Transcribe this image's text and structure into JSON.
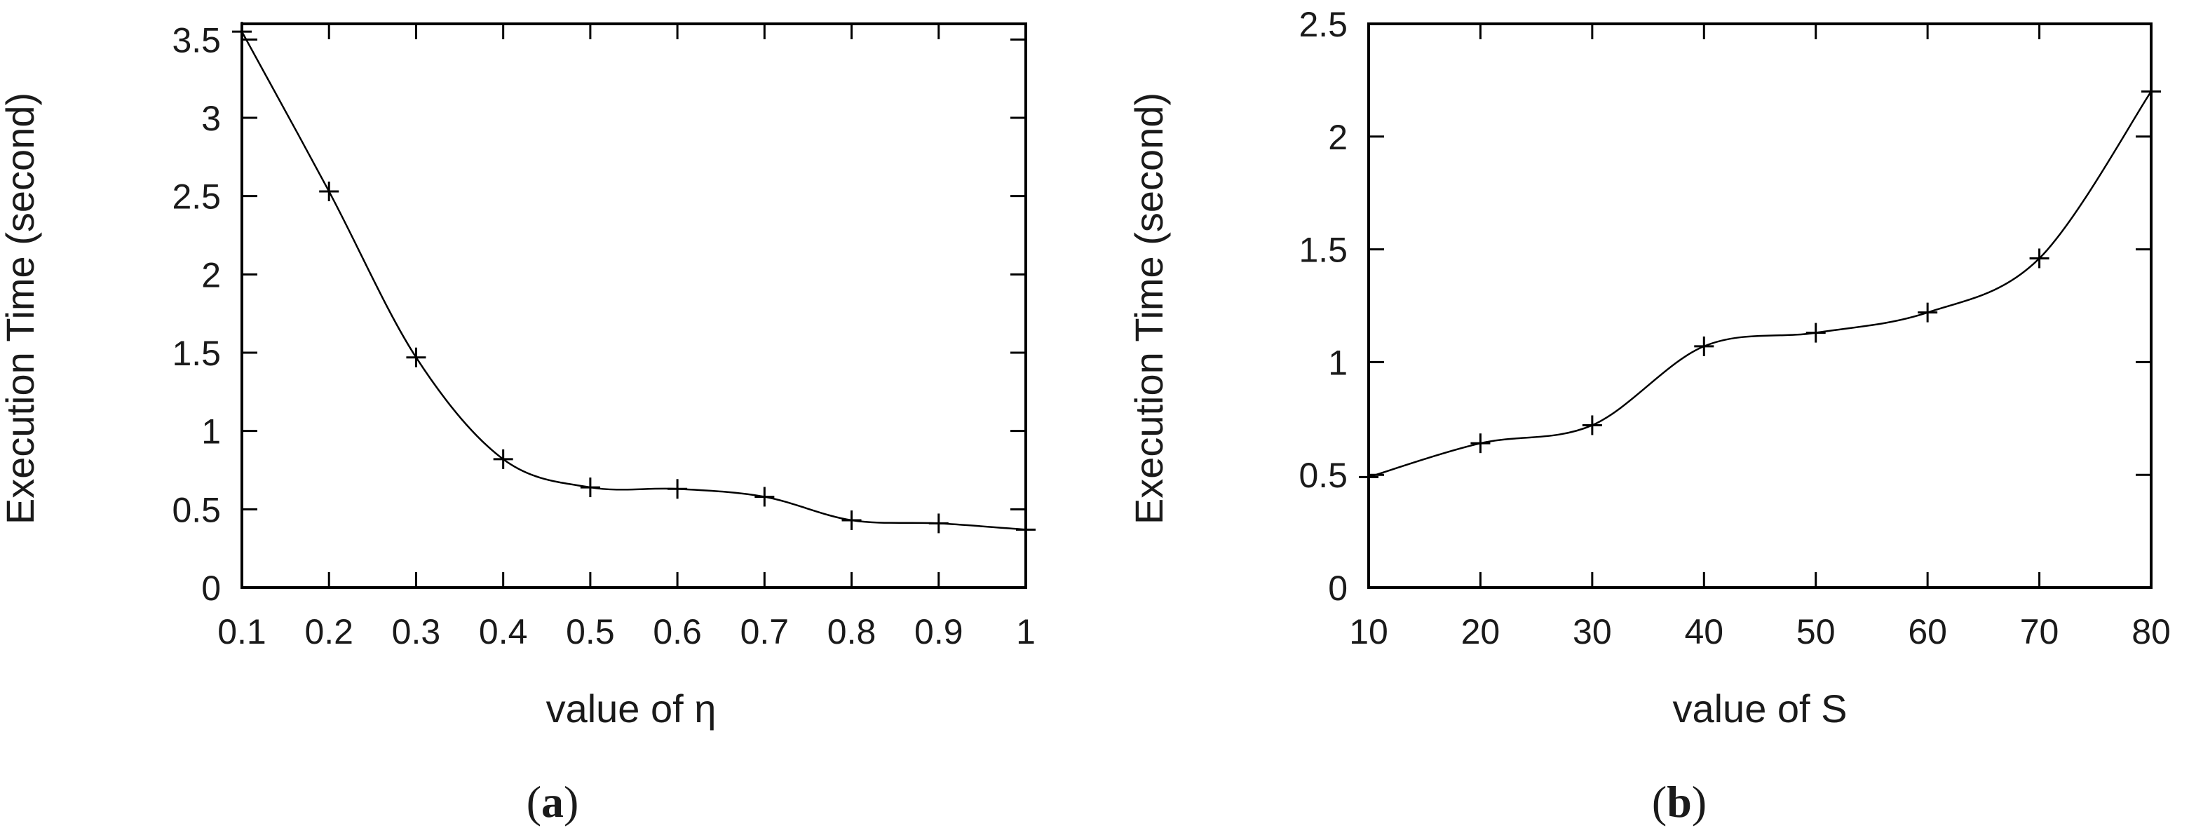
{
  "chart_data": [
    {
      "type": "line",
      "panel_label": "a",
      "xlabel": "value of η",
      "ylabel": "Execution Time (second)",
      "xlim": [
        0.1,
        1
      ],
      "ylim": [
        0,
        3.6
      ],
      "xticks": [
        "0.1",
        "0.2",
        "0.3",
        "0.4",
        "0.5",
        "0.6",
        "0.7",
        "0.8",
        "0.9",
        "1"
      ],
      "yticks": [
        "0",
        "0.5",
        "1",
        "1.5",
        "2",
        "2.5",
        "3",
        "3.5"
      ],
      "x": [
        0.1,
        0.2,
        0.3,
        0.4,
        0.5,
        0.6,
        0.7,
        0.8,
        0.9,
        1.0
      ],
      "y": [
        3.55,
        2.53,
        1.47,
        0.82,
        0.64,
        0.63,
        0.58,
        0.43,
        0.41,
        0.37
      ],
      "grid": false,
      "marker": "plus"
    },
    {
      "type": "line",
      "panel_label": "b",
      "xlabel": "value of S",
      "ylabel": "Execution Time (second)",
      "xlim": [
        10,
        80
      ],
      "ylim": [
        0,
        2.5
      ],
      "xticks": [
        "10",
        "20",
        "30",
        "40",
        "50",
        "60",
        "70",
        "80"
      ],
      "yticks": [
        "0",
        "0.5",
        "1",
        "1.5",
        "2",
        "2.5"
      ],
      "x": [
        10,
        20,
        30,
        40,
        50,
        60,
        70,
        80
      ],
      "y": [
        0.49,
        0.64,
        0.72,
        1.07,
        1.13,
        1.22,
        1.46,
        2.2
      ],
      "grid": false,
      "marker": "plus"
    }
  ]
}
